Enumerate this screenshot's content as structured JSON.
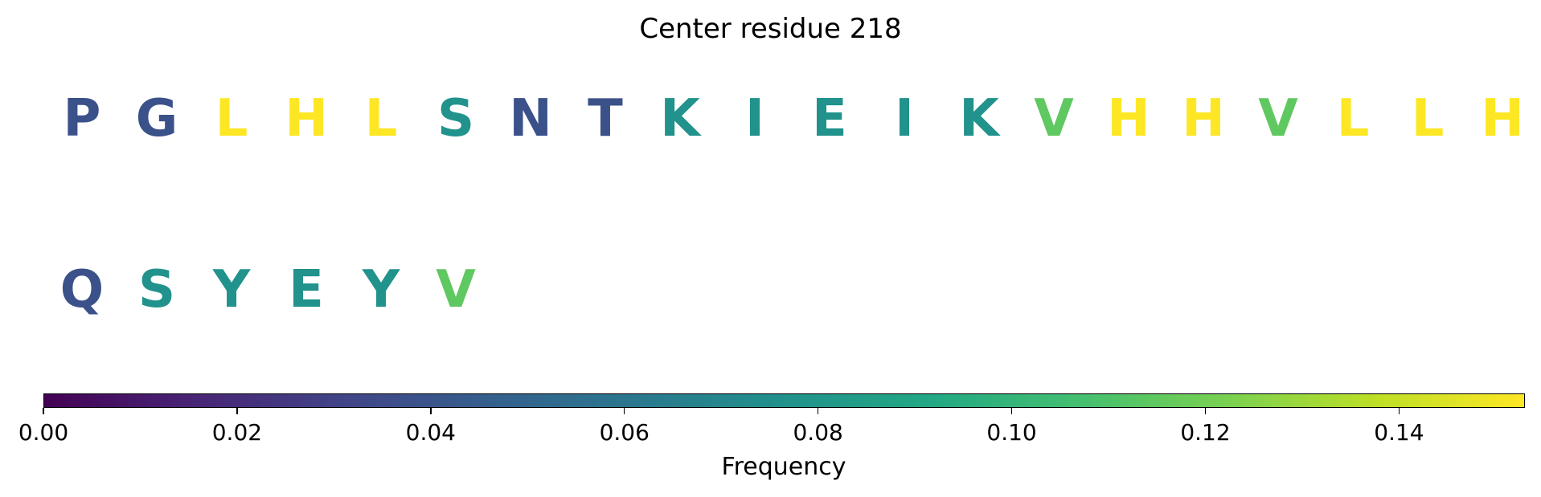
{
  "chart_data": {
    "type": "heatmap",
    "title": "Center residue 218",
    "colormap": "viridis",
    "residues": [
      {
        "letter": "P",
        "frequency": 0.038
      },
      {
        "letter": "G",
        "frequency": 0.038
      },
      {
        "letter": "L",
        "frequency": 0.153
      },
      {
        "letter": "H",
        "frequency": 0.153
      },
      {
        "letter": "L",
        "frequency": 0.153
      },
      {
        "letter": "S",
        "frequency": 0.077
      },
      {
        "letter": "N",
        "frequency": 0.038
      },
      {
        "letter": "T",
        "frequency": 0.038
      },
      {
        "letter": "K",
        "frequency": 0.077
      },
      {
        "letter": "I",
        "frequency": 0.077
      },
      {
        "letter": "E",
        "frequency": 0.077
      },
      {
        "letter": "I",
        "frequency": 0.077
      },
      {
        "letter": "K",
        "frequency": 0.077
      },
      {
        "letter": "V",
        "frequency": 0.115
      },
      {
        "letter": "H",
        "frequency": 0.153
      },
      {
        "letter": "H",
        "frequency": 0.153
      },
      {
        "letter": "V",
        "frequency": 0.115
      },
      {
        "letter": "L",
        "frequency": 0.153
      },
      {
        "letter": "L",
        "frequency": 0.153
      },
      {
        "letter": "H",
        "frequency": 0.153
      },
      {
        "letter": "Q",
        "frequency": 0.038
      },
      {
        "letter": "S",
        "frequency": 0.077
      },
      {
        "letter": "Y",
        "frequency": 0.077
      },
      {
        "letter": "E",
        "frequency": 0.077
      },
      {
        "letter": "Y",
        "frequency": 0.077
      },
      {
        "letter": "V",
        "frequency": 0.115
      }
    ],
    "colorbar": {
      "label": "Frequency",
      "range": [
        0.0,
        0.153
      ],
      "ticks": [
        "0.00",
        "0.02",
        "0.04",
        "0.06",
        "0.08",
        "0.10",
        "0.12",
        "0.14"
      ]
    }
  }
}
